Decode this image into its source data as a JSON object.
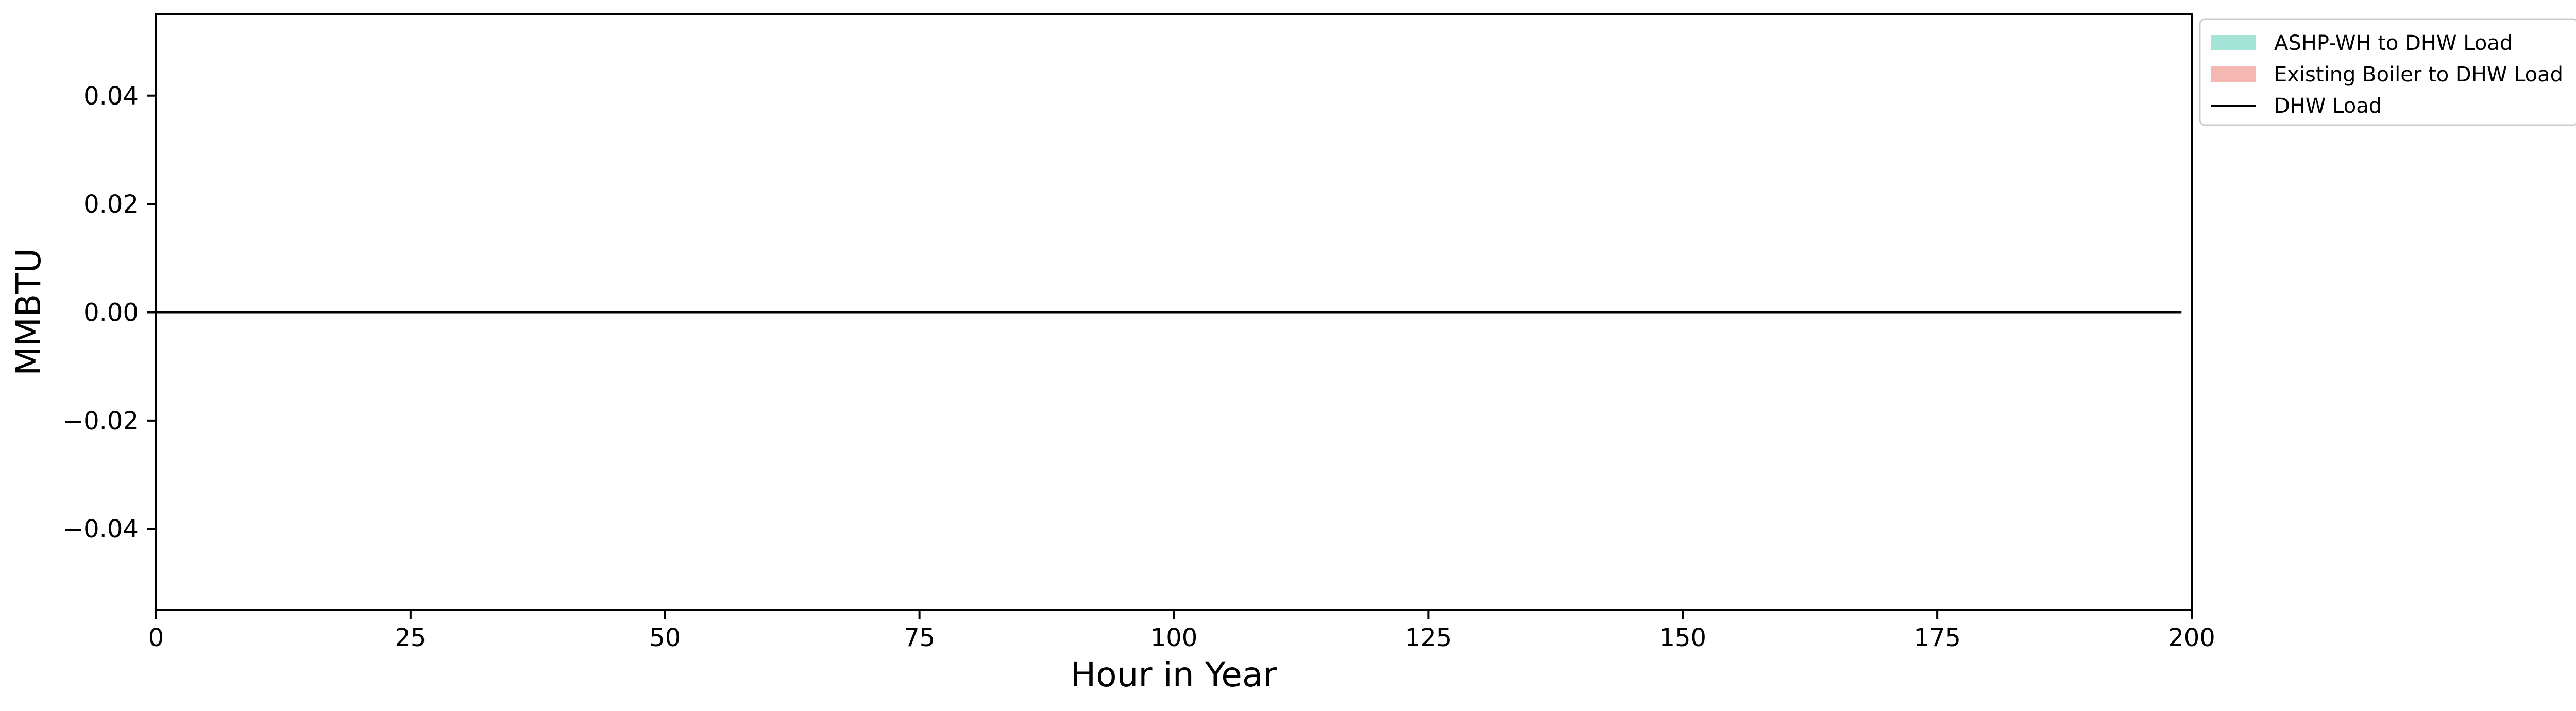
{
  "chart_data": {
    "type": "area",
    "title": "",
    "xlabel": "Hour in Year",
    "ylabel": "MMBTU",
    "xlim": [
      0,
      200
    ],
    "ylim": [
      -0.055,
      0.055
    ],
    "xticks": [
      0,
      25,
      50,
      75,
      100,
      125,
      150,
      175,
      200
    ],
    "xtick_labels": [
      "0",
      "25",
      "50",
      "75",
      "100",
      "125",
      "150",
      "175",
      "200"
    ],
    "yticks": [
      -0.04,
      -0.02,
      0.0,
      0.02,
      0.04
    ],
    "ytick_labels": [
      "−0.04",
      "−0.02",
      "0.00",
      "0.02",
      "0.04"
    ],
    "grid": false,
    "legend_placement": "outside top-right",
    "series": [
      {
        "name": "ASHP-WH to DHW Load",
        "kind": "stacked-area",
        "color": "#a3e4d7",
        "x": [
          0,
          199
        ],
        "values": [
          0,
          0
        ]
      },
      {
        "name": "Existing Boiler to DHW Load",
        "kind": "stacked-area",
        "color": "#f5b7b1",
        "x": [
          0,
          199
        ],
        "values": [
          0,
          0
        ]
      },
      {
        "name": "DHW Load",
        "kind": "line",
        "color": "#000000",
        "x": [
          0,
          199
        ],
        "values": [
          0,
          0
        ]
      }
    ]
  }
}
